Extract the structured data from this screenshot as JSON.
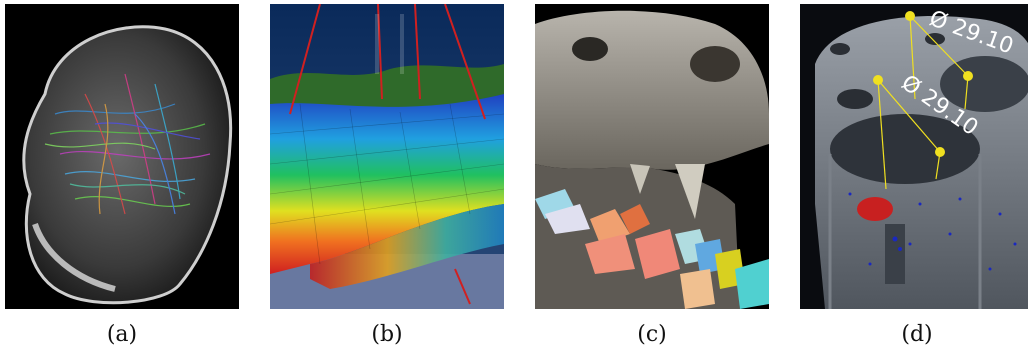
{
  "panels": [
    {
      "caption": "(a)",
      "subject": "brain fiber tractography"
    },
    {
      "caption": "(b)",
      "subject": "geological reservoir mesh with wells"
    },
    {
      "caption": "(c)",
      "subject": "skull CT volume rendering with segmented teeth"
    },
    {
      "caption": "(d)",
      "subject": "industrial CT part with measurements"
    }
  ],
  "measurements": [
    "Ø 29.10",
    "Ø 29.10"
  ]
}
